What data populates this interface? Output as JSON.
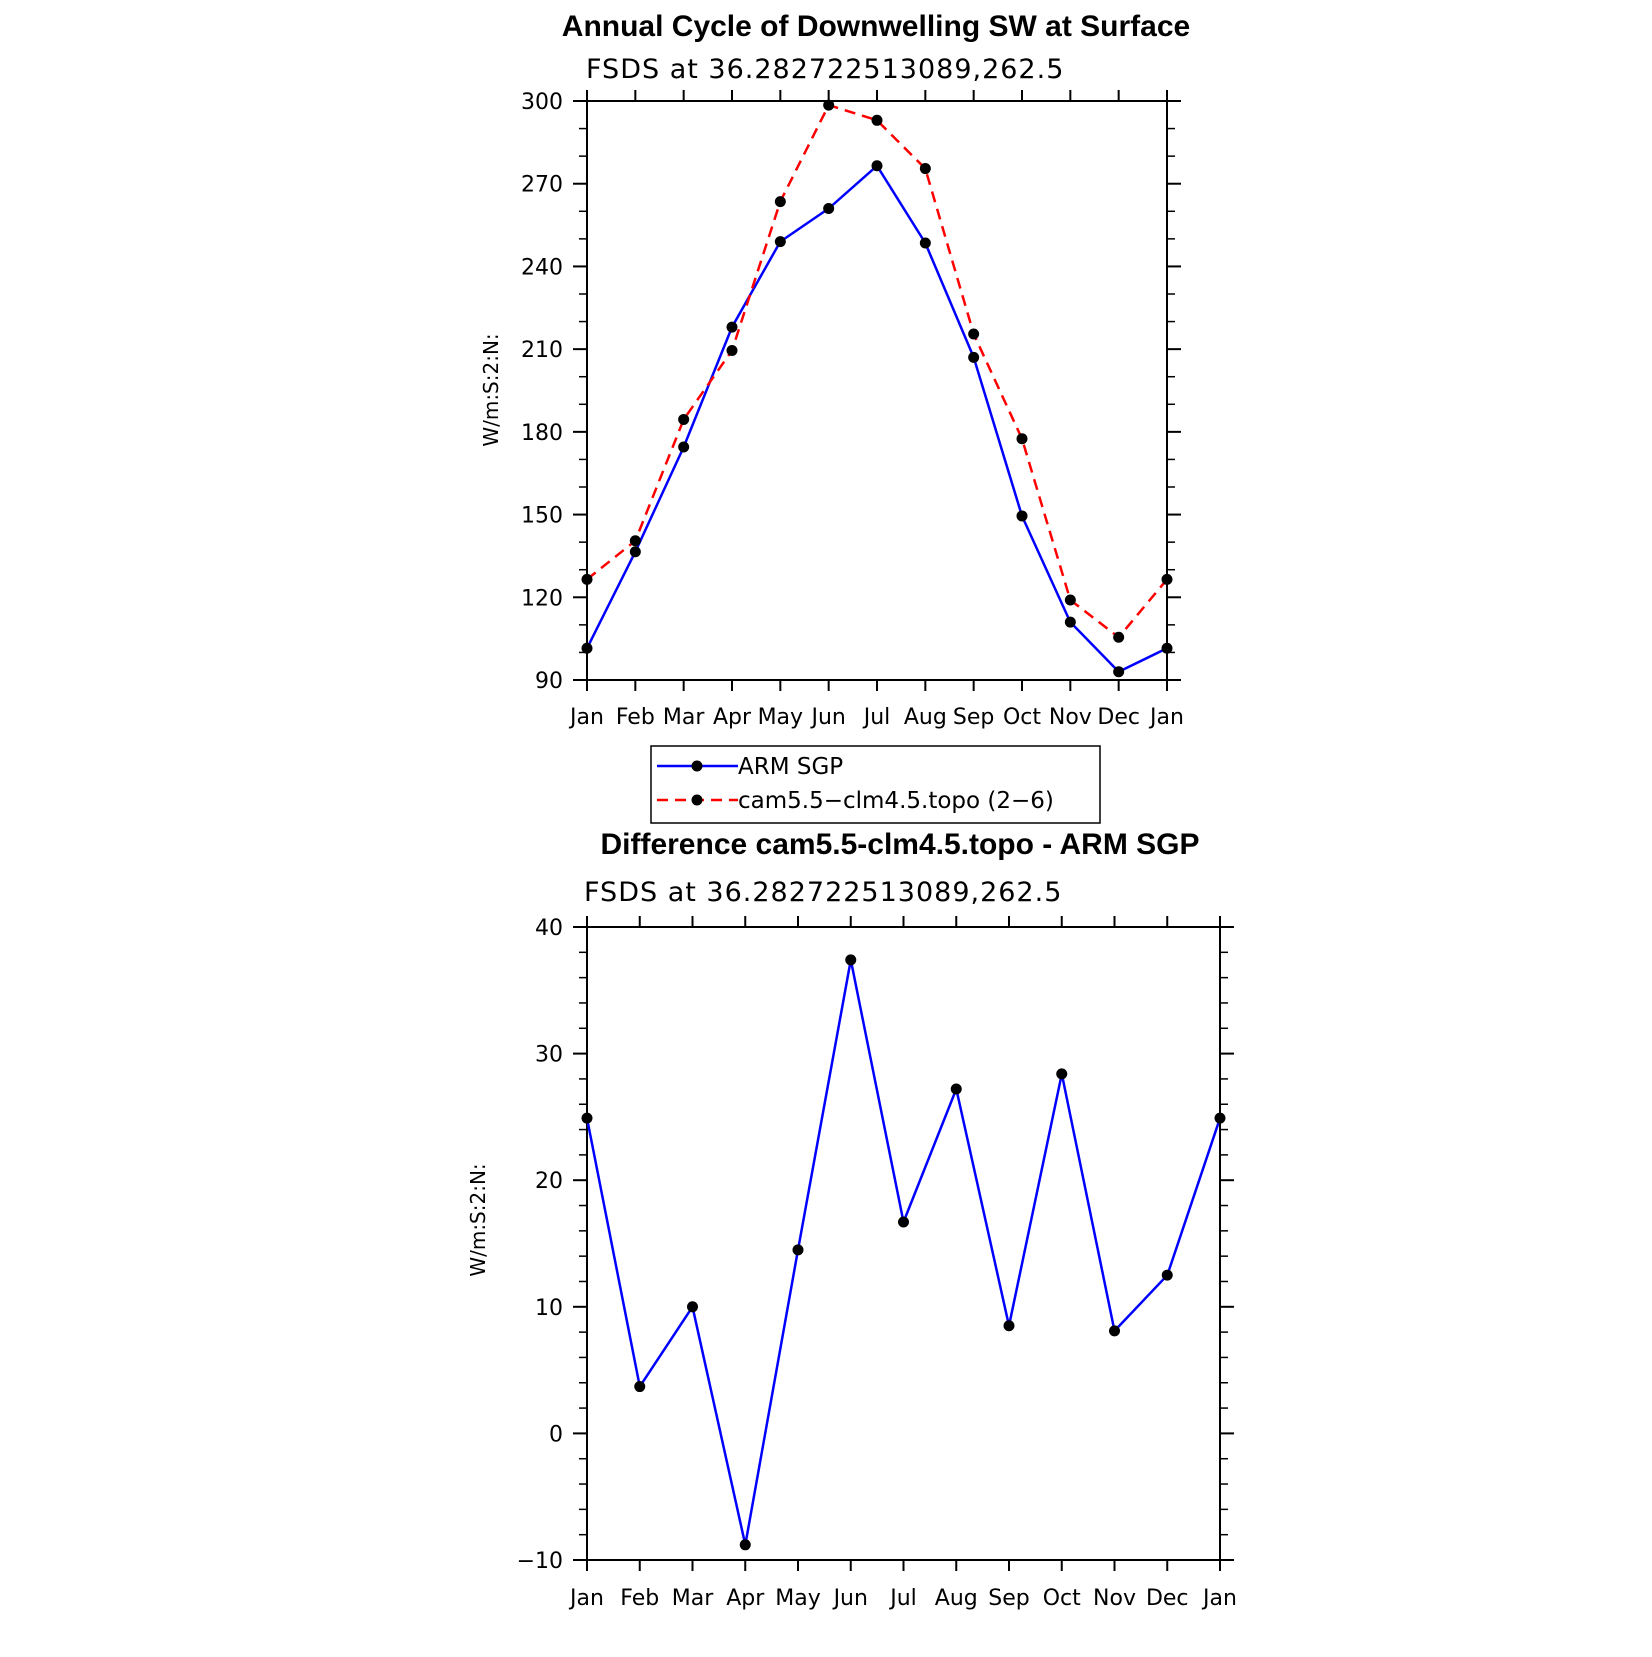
{
  "chart_data": [
    {
      "type": "line",
      "title": "Annual Cycle of Downwelling SW at Surface",
      "subtitle": "FSDS at 36.282722513089,262.5",
      "ylabel": "W/m:S:2:N:",
      "xlabel": "",
      "categories": [
        "Jan",
        "Feb",
        "Mar",
        "Apr",
        "May",
        "Jun",
        "Jul",
        "Aug",
        "Sep",
        "Oct",
        "Nov",
        "Dec",
        "Jan"
      ],
      "ylim": [
        90,
        300
      ],
      "yticks": [
        90,
        120,
        150,
        180,
        210,
        240,
        270,
        300
      ],
      "series": [
        {
          "name": "ARM SGP",
          "color": "#0000ff",
          "dash": "solid",
          "values": [
            101.5,
            136.5,
            174.5,
            218,
            249,
            261,
            276.5,
            248.5,
            207,
            149.5,
            111,
            93,
            101.5
          ]
        },
        {
          "name": "cam5.5−clm4.5.topo (2−6)",
          "color": "#ff0000",
          "dash": "dashed",
          "values": [
            126.5,
            140.5,
            184.5,
            209.5,
            263.5,
            298.5,
            293,
            275.5,
            215.5,
            177.5,
            119,
            105.5,
            126.5
          ]
        }
      ],
      "legend": "below"
    },
    {
      "type": "line",
      "title": "Difference cam5.5-clm4.5.topo - ARM SGP",
      "subtitle": "FSDS at 36.282722513089,262.5",
      "ylabel": "W/m:S:2:N:",
      "xlabel": "",
      "categories": [
        "Jan",
        "Feb",
        "Mar",
        "Apr",
        "May",
        "Jun",
        "Jul",
        "Aug",
        "Sep",
        "Oct",
        "Nov",
        "Dec",
        "Jan"
      ],
      "ylim": [
        -10,
        40
      ],
      "yticks": [
        -10,
        0,
        10,
        20,
        30,
        40
      ],
      "ytick_labels": [
        "−10",
        "0",
        "10",
        "20",
        "30",
        "40"
      ],
      "series": [
        {
          "color": "#0000ff",
          "dash": "solid",
          "values": [
            24.9,
            3.7,
            10.0,
            -8.8,
            14.5,
            37.4,
            16.7,
            27.2,
            8.5,
            28.4,
            8.1,
            12.5,
            24.9
          ]
        }
      ]
    }
  ]
}
